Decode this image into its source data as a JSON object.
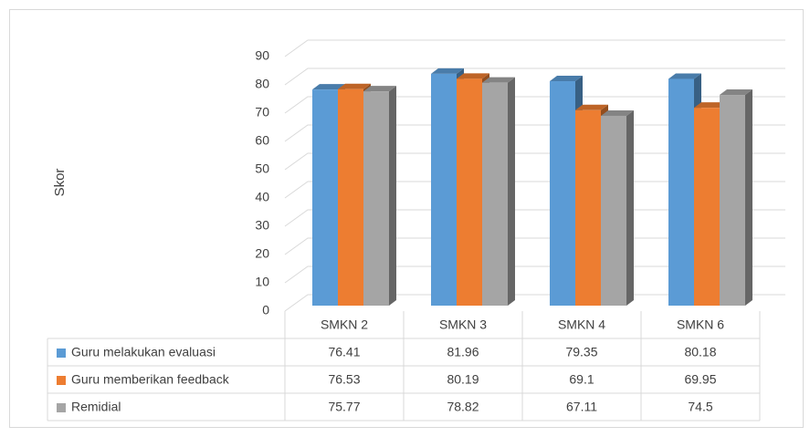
{
  "chart_data": {
    "type": "bar3d",
    "y_label": "Skor",
    "categories": [
      "SMKN 2",
      "SMKN 3",
      "SMKN 4",
      "SMKN 6"
    ],
    "series": [
      {
        "name": "Guru melakukan evaluasi",
        "color": "#5b9bd5",
        "values": [
          76.41,
          81.96,
          79.35,
          80.18
        ]
      },
      {
        "name": "Guru memberikan feedback",
        "color": "#ed7d31",
        "values": [
          76.53,
          80.19,
          69.1,
          69.95
        ]
      },
      {
        "name": "Remidial",
        "color": "#a5a5a5",
        "values": [
          75.77,
          78.82,
          67.11,
          74.5
        ]
      }
    ],
    "ylim": [
      0,
      90
    ],
    "yticks": [
      0,
      10,
      20,
      30,
      40,
      50,
      60,
      70,
      80,
      90
    ],
    "grid": true,
    "data_table": true
  }
}
